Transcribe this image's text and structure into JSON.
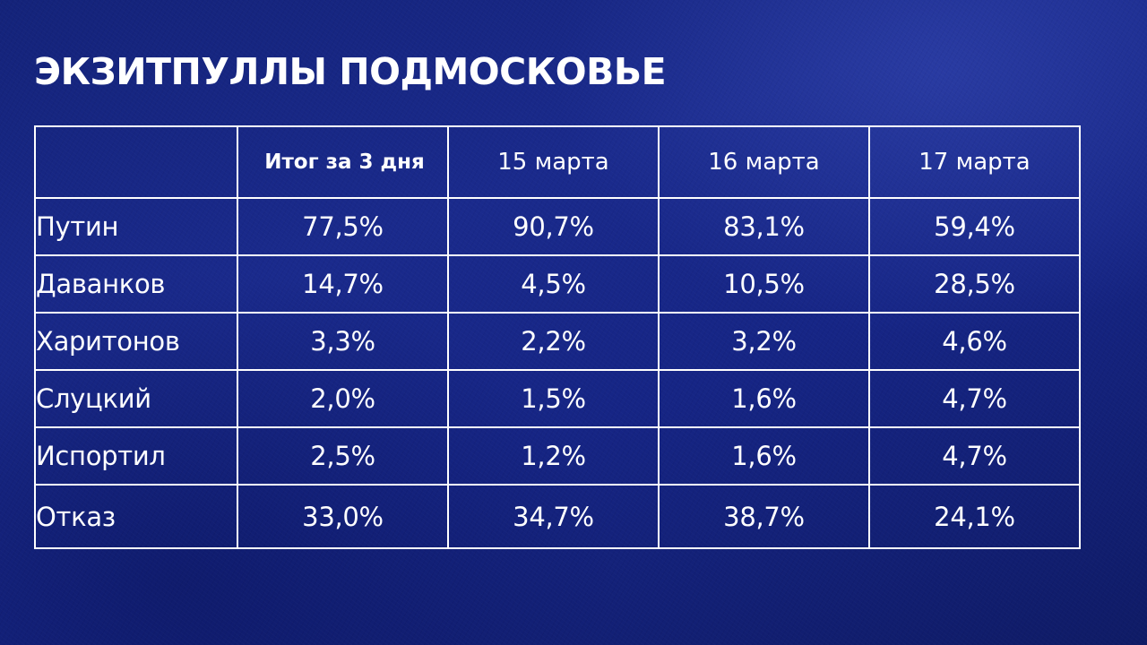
{
  "title": "ЭКЗИТПУЛЛЫ ПОДМОСКОВЬЕ",
  "colors": {
    "background": "#1a2a8c",
    "text": "#ffffff",
    "grid": "#ffffff"
  },
  "table": {
    "columns": [
      "",
      "Итог за 3 дня",
      "15 марта",
      "16 марта",
      "17 марта"
    ],
    "rows": [
      {
        "label": "Путин",
        "values": [
          "77,5%",
          "90,7%",
          "83,1%",
          "59,4%"
        ]
      },
      {
        "label": "Даванков",
        "values": [
          "14,7%",
          "4,5%",
          "10,5%",
          "28,5%"
        ]
      },
      {
        "label": "Харитонов",
        "values": [
          "3,3%",
          "2,2%",
          "3,2%",
          "4,6%"
        ]
      },
      {
        "label": "Слуцкий",
        "values": [
          "2,0%",
          "1,5%",
          "1,6%",
          "4,7%"
        ]
      },
      {
        "label": "Испортил",
        "values": [
          "2,5%",
          "1,2%",
          "1,6%",
          "4,7%"
        ]
      },
      {
        "label": "Отказ",
        "values": [
          "33,0%",
          "34,7%",
          "38,7%",
          "24,1%"
        ]
      }
    ]
  }
}
